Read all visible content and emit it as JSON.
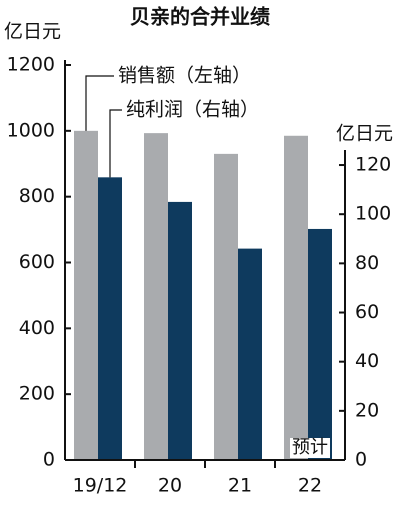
{
  "chart_data": {
    "type": "bar",
    "title": "贝亲的合并业绩",
    "y_label": "亿日元",
    "y2_label": "亿日元",
    "categories": [
      "19/12",
      "20",
      "21",
      "22"
    ],
    "series": [
      {
        "name": "销售额（左轴）",
        "color": "#a9abae",
        "values": [
          1000,
          993,
          930,
          985
        ]
      },
      {
        "name": "纯利润（右轴）",
        "color": "#0e3a5e",
        "values": [
          115,
          105,
          86,
          94
        ],
        "axis": "y2"
      }
    ],
    "annotations": [
      "预计"
    ],
    "ylim": [
      0,
      1200
    ],
    "yticks": [
      0,
      200,
      400,
      600,
      800,
      1000,
      1200
    ],
    "y2lim": [
      0,
      160.7
    ],
    "y2ticks": [
      0,
      20,
      40,
      60,
      80,
      100,
      120
    ]
  }
}
